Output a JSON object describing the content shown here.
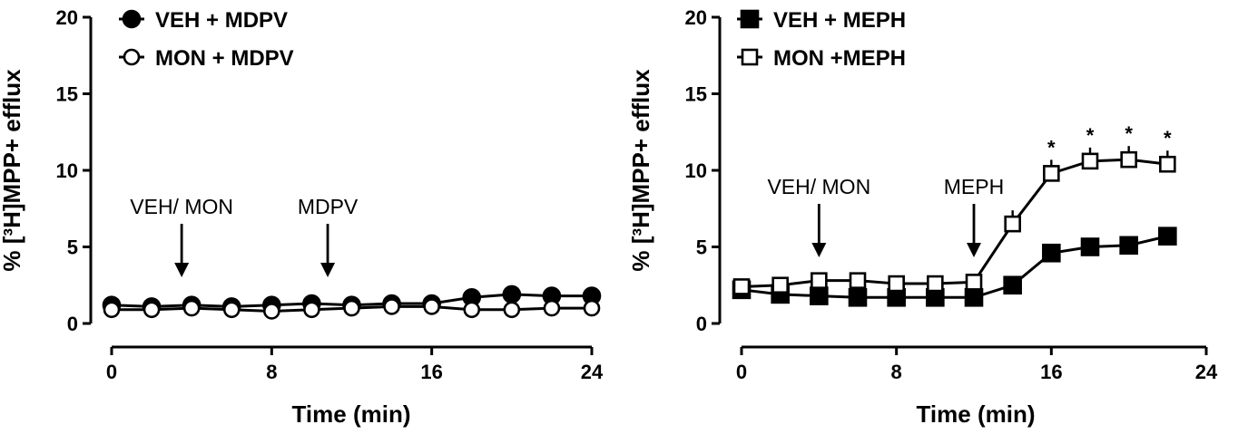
{
  "chart_data": [
    {
      "type": "line",
      "xlabel": "Time (min)",
      "ylabel": "% [³H]MPP+ efflux",
      "xlim": [
        0,
        24
      ],
      "ylim": [
        0,
        20
      ],
      "xticks": [
        "0",
        "8",
        "16",
        "24"
      ],
      "yticks": [
        "0",
        "5",
        "10",
        "15",
        "20"
      ],
      "grid": false,
      "legend": "top-left",
      "series": [
        {
          "name": "VEH + MDPV",
          "marker": "filled-circle",
          "x": [
            0,
            2,
            4,
            6,
            8,
            10,
            12,
            14,
            16,
            18,
            20,
            22,
            24
          ],
          "y": [
            1.2,
            1.1,
            1.2,
            1.1,
            1.2,
            1.3,
            1.2,
            1.3,
            1.3,
            1.7,
            1.9,
            1.8,
            1.8
          ]
        },
        {
          "name": "MON + MDPV",
          "marker": "open-circle",
          "x": [
            0,
            2,
            4,
            6,
            8,
            10,
            12,
            14,
            16,
            18,
            20,
            22,
            24
          ],
          "y": [
            0.9,
            0.9,
            1.0,
            0.9,
            0.8,
            0.9,
            1.0,
            1.1,
            1.1,
            0.9,
            0.9,
            1.0,
            1.0
          ]
        }
      ],
      "annotations": [
        {
          "text": "VEH/ MON",
          "x": 3.5
        },
        {
          "text": "MDPV",
          "x": 10.8
        }
      ],
      "significance": []
    },
    {
      "type": "line",
      "xlabel": "Time (min)",
      "ylabel": "% [³H]MPP+ efflux",
      "xlim": [
        0,
        24
      ],
      "ylim": [
        0,
        20
      ],
      "xticks": [
        "0",
        "8",
        "16",
        "24"
      ],
      "yticks": [
        "0",
        "5",
        "10",
        "15",
        "20"
      ],
      "grid": false,
      "legend": "top-left",
      "series": [
        {
          "name": "VEH + MEPH",
          "marker": "filled-square",
          "x": [
            0,
            2,
            4,
            6,
            8,
            10,
            12,
            14,
            16,
            18,
            20,
            22
          ],
          "y": [
            2.2,
            1.9,
            1.8,
            1.7,
            1.7,
            1.7,
            1.7,
            2.5,
            4.6,
            5.0,
            5.1,
            5.7
          ]
        },
        {
          "name": "MON +MEPH",
          "marker": "open-square",
          "x": [
            0,
            2,
            4,
            6,
            8,
            10,
            12,
            14,
            16,
            18,
            20,
            22
          ],
          "y": [
            2.4,
            2.5,
            2.8,
            2.8,
            2.6,
            2.6,
            2.7,
            6.5,
            9.8,
            10.6,
            10.7,
            10.4
          ]
        }
      ],
      "annotations": [
        {
          "text": "VEH/ MON",
          "x": 4.0
        },
        {
          "text": "MEPH",
          "x": 12.0
        }
      ],
      "significance": [
        {
          "text": "*",
          "x": 16,
          "y": 9.8
        },
        {
          "text": "*",
          "x": 18,
          "y": 10.6
        },
        {
          "text": "*",
          "x": 20,
          "y": 10.7
        },
        {
          "text": "*",
          "x": 22,
          "y": 10.4
        }
      ]
    }
  ]
}
